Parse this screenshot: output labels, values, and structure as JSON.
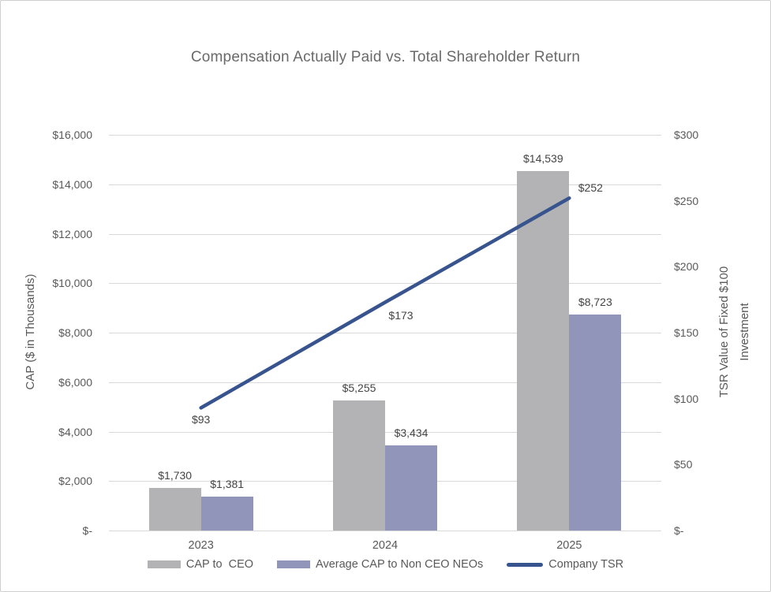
{
  "title": "Compensation Actually Paid vs. Total Shareholder Return",
  "chart_data": {
    "type": "combo",
    "subtype": "clustered-bar-plus-line",
    "categories": [
      "2023",
      "2024",
      "2025"
    ],
    "bar_series": [
      {
        "name": "CAP to  CEO",
        "color": "#b3b3b6",
        "values": [
          1730,
          5255,
          14539
        ],
        "labels": [
          "$1,730",
          "$5,255",
          "$14,539"
        ],
        "axis": "left"
      },
      {
        "name": "Average CAP to Non CEO NEOs",
        "color": "#9195ba",
        "values": [
          1381,
          3434,
          8723
        ],
        "labels": [
          "$1,381",
          "$3,434",
          "$8,723"
        ],
        "axis": "left"
      }
    ],
    "line_series": {
      "name": "Company TSR",
      "color": "#37548f",
      "values": [
        93,
        173,
        252
      ],
      "labels": [
        "$93",
        "$173",
        "$252"
      ],
      "axis": "right"
    },
    "left_axis": {
      "title": "CAP ($ in Thousands)",
      "min": 0,
      "max": 16000,
      "step": 2000,
      "tick_labels_top_down": [
        "$16,000",
        "$14,000",
        "$12,000",
        "$10,000",
        "$8,000",
        "$6,000",
        "$4,000",
        "$2,000",
        "$-"
      ]
    },
    "right_axis": {
      "title_lines": [
        "TSR Value of Fixed $100",
        "Investment"
      ],
      "min": 0,
      "max": 300,
      "step": 50,
      "tick_labels_top_down": [
        "$300",
        "$250",
        "$200",
        "$150",
        "$100",
        "$50",
        "$-"
      ]
    },
    "grid": true,
    "legend_position": "bottom"
  }
}
